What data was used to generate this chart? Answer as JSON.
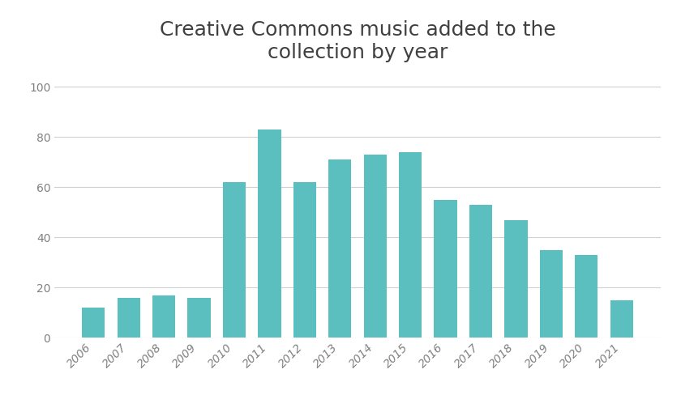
{
  "title": "Creative Commons music added to the\ncollection by year",
  "categories": [
    "2006",
    "2007",
    "2008",
    "2009",
    "2010",
    "2011",
    "2012",
    "2013",
    "2014",
    "2015",
    "2016",
    "2017",
    "2018",
    "2019",
    "2020",
    "2021"
  ],
  "values": [
    12,
    16,
    17,
    16,
    62,
    83,
    62,
    71,
    73,
    74,
    55,
    53,
    47,
    35,
    33,
    15
  ],
  "bar_color": "#5BBFBF",
  "ylim": [
    0,
    105
  ],
  "yticks": [
    0,
    20,
    40,
    60,
    80,
    100
  ],
  "title_fontsize": 18,
  "tick_fontsize": 10,
  "background_color": "#ffffff",
  "grid_color": "#d0d0d0",
  "title_color": "#404040",
  "tick_color": "#808080"
}
